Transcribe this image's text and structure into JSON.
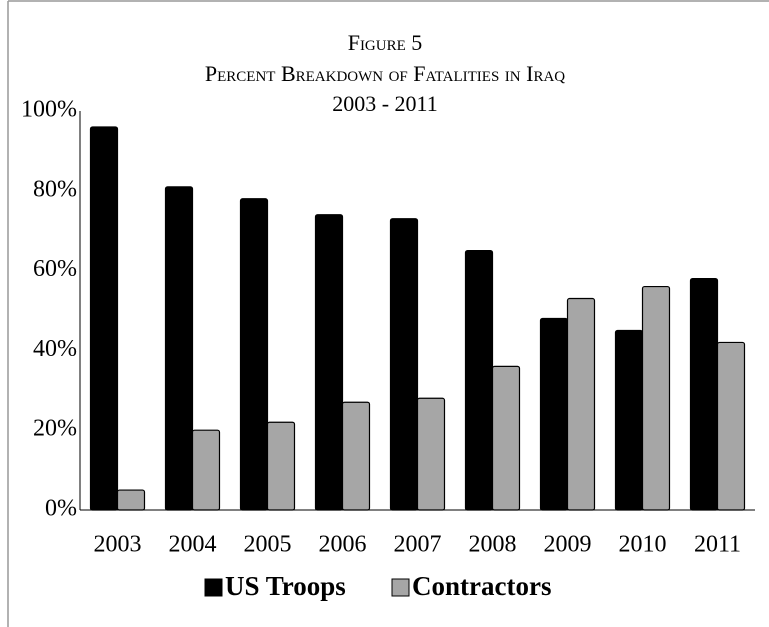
{
  "chart_data": {
    "type": "bar",
    "title": [
      "Figure 5",
      "Percent Breakdown of Fatalities in Iraq",
      "2003 - 2011"
    ],
    "categories": [
      "2003",
      "2004",
      "2005",
      "2006",
      "2007",
      "2008",
      "2009",
      "2010",
      "2011"
    ],
    "series": [
      {
        "name": "US Troops",
        "color": "#000000",
        "values": [
          96,
          81,
          78,
          74,
          73,
          65,
          48,
          45,
          58
        ]
      },
      {
        "name": "Contractors",
        "color": "#a6a6a6",
        "values": [
          5,
          20,
          22,
          27,
          28,
          36,
          53,
          56,
          42
        ]
      }
    ],
    "ylim": [
      0,
      100
    ],
    "yticks": [
      {
        "value": 0,
        "label": "0%"
      },
      {
        "value": 20,
        "label": "20%"
      },
      {
        "value": 40,
        "label": "40%"
      },
      {
        "value": 60,
        "label": "60%"
      },
      {
        "value": 80,
        "label": "80%"
      },
      {
        "value": 100,
        "label": "100%"
      }
    ],
    "legend": "bottom"
  }
}
